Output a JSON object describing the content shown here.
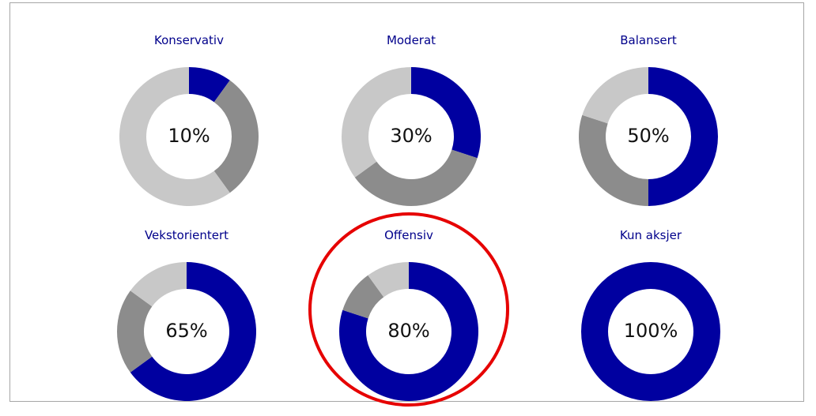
{
  "chart_data": [
    {
      "type": "pie",
      "title": "Konservativ",
      "center_label": "10%",
      "slices": [
        {
          "value": 10,
          "color": "#0000a0"
        },
        {
          "value": 30,
          "color": "#8c8c8c"
        },
        {
          "value": 60,
          "color": "#c8c8c8"
        }
      ]
    },
    {
      "type": "pie",
      "title": "Moderat",
      "center_label": "30%",
      "slices": [
        {
          "value": 30,
          "color": "#0000a0"
        },
        {
          "value": 35,
          "color": "#8c8c8c"
        },
        {
          "value": 35,
          "color": "#c8c8c8"
        }
      ]
    },
    {
      "type": "pie",
      "title": "Balansert",
      "center_label": "50%",
      "slices": [
        {
          "value": 50,
          "color": "#0000a0"
        },
        {
          "value": 30,
          "color": "#8c8c8c"
        },
        {
          "value": 20,
          "color": "#c8c8c8"
        }
      ]
    },
    {
      "type": "pie",
      "title": "Vekstorientert",
      "center_label": "65%",
      "slices": [
        {
          "value": 65,
          "color": "#0000a0"
        },
        {
          "value": 20,
          "color": "#8c8c8c"
        },
        {
          "value": 15,
          "color": "#c8c8c8"
        }
      ]
    },
    {
      "type": "pie",
      "title": "Offensiv",
      "center_label": "80%",
      "slices": [
        {
          "value": 80,
          "color": "#0000a0"
        },
        {
          "value": 10,
          "color": "#8c8c8c"
        },
        {
          "value": 10,
          "color": "#c8c8c8"
        }
      ]
    },
    {
      "type": "pie",
      "title": "Kun aksjer",
      "center_label": "100%",
      "slices": [
        {
          "value": 100,
          "color": "#0000a0"
        },
        {
          "value": 0,
          "color": "#8c8c8c"
        },
        {
          "value": 0,
          "color": "#c8c8c8"
        }
      ]
    }
  ],
  "highlight": {
    "portfolio": "Offensiv",
    "color": "#e60000"
  }
}
